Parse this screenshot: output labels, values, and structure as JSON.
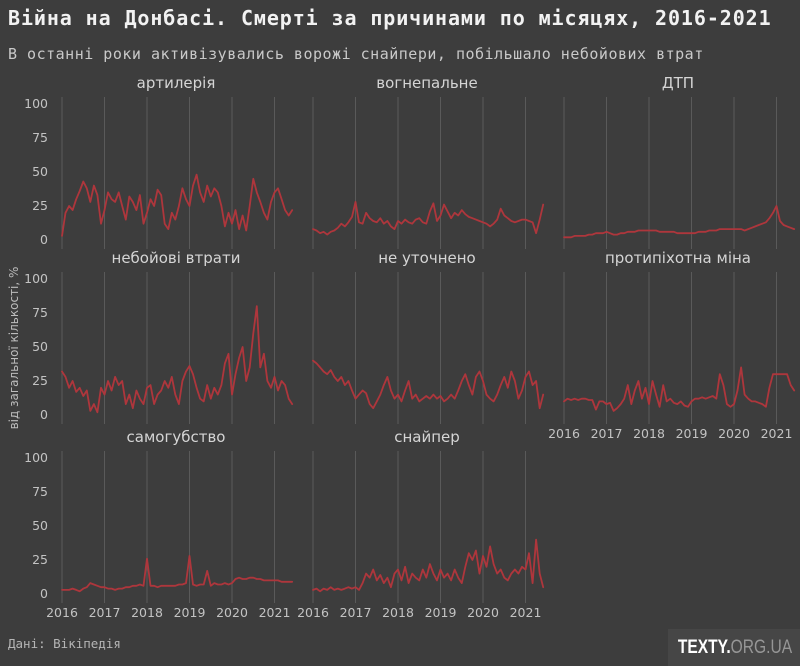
{
  "header": {
    "title": "Війна на Донбасі. Смерті за причинами по місяцях, 2016-2021",
    "subtitle": "В останні роки активізувались ворожі снайпери, побільшало небойових втрат"
  },
  "footer": {
    "source": "Дані: Вікіпедія",
    "logo_bold": "TEXTY.",
    "logo_light": "ORG.UA"
  },
  "chart_data": {
    "type": "line",
    "layout_hint": "small multiples: 8 panels in 3 columns, shared y axis 0-100%, vertical gridlines at each year, y tick labels only on left column, x tick labels under last panel of each column, no legend, dark background",
    "ylabel": "від загальної кількості, %",
    "ylim": [
      0,
      100
    ],
    "yticks": [
      100,
      75,
      50,
      25,
      0
    ],
    "xticks": [
      "2016",
      "2017",
      "2018",
      "2019",
      "2020",
      "2021"
    ],
    "x_start": "2016-01",
    "x_step_months": 1,
    "background_color": "#3d3d3d",
    "line_color": "#ae363c",
    "grid_color": "#5a5a5a",
    "panels": [
      {
        "title": "артилерія",
        "values": [
          3,
          20,
          25,
          22,
          30,
          36,
          43,
          38,
          28,
          40,
          33,
          12,
          22,
          35,
          30,
          28,
          35,
          25,
          15,
          32,
          28,
          22,
          33,
          12,
          20,
          30,
          25,
          37,
          33,
          12,
          8,
          20,
          15,
          25,
          38,
          30,
          25,
          40,
          48,
          35,
          28,
          40,
          32,
          38,
          35,
          25,
          10,
          20,
          12,
          22,
          8,
          18,
          7,
          25,
          45,
          35,
          28,
          20,
          15,
          28,
          35,
          38,
          30,
          22,
          18,
          22
        ]
      },
      {
        "title": "вогнепальне",
        "values": [
          8,
          7,
          5,
          6,
          4,
          6,
          7,
          9,
          12,
          10,
          13,
          17,
          28,
          13,
          12,
          20,
          16,
          14,
          13,
          16,
          12,
          14,
          10,
          8,
          14,
          12,
          15,
          13,
          12,
          15,
          16,
          13,
          12,
          21,
          27,
          14,
          18,
          26,
          21,
          16,
          20,
          18,
          22,
          19,
          17,
          16,
          15,
          14,
          13,
          12,
          10,
          12,
          15,
          23,
          18,
          16,
          14,
          13,
          14,
          15,
          15,
          14,
          13,
          5,
          15,
          26
        ]
      },
      {
        "title": "ДТП",
        "values": [
          2,
          2,
          2,
          3,
          3,
          3,
          3,
          4,
          4,
          5,
          5,
          5,
          6,
          5,
          4,
          4,
          5,
          5,
          6,
          6,
          6,
          7,
          7,
          7,
          7,
          7,
          7,
          6,
          6,
          6,
          6,
          6,
          5,
          5,
          5,
          5,
          5,
          5,
          6,
          6,
          6,
          7,
          7,
          7,
          8,
          8,
          8,
          8,
          8,
          8,
          8,
          7,
          8,
          9,
          10,
          11,
          12,
          13,
          16,
          20,
          25,
          14,
          11,
          10,
          9,
          8
        ]
      },
      {
        "title": "небойові втрати",
        "values": [
          32,
          28,
          20,
          25,
          17,
          20,
          14,
          18,
          3,
          8,
          2,
          20,
          15,
          25,
          18,
          28,
          22,
          25,
          8,
          15,
          5,
          18,
          12,
          8,
          20,
          22,
          8,
          15,
          18,
          25,
          20,
          28,
          15,
          8,
          25,
          32,
          36,
          30,
          20,
          12,
          10,
          22,
          12,
          20,
          15,
          22,
          38,
          45,
          15,
          30,
          42,
          50,
          25,
          35,
          60,
          80,
          35,
          45,
          25,
          20,
          28,
          18,
          25,
          22,
          12,
          8
        ]
      },
      {
        "title": "не уточнено",
        "values": [
          40,
          38,
          35,
          32,
          30,
          33,
          28,
          25,
          28,
          22,
          25,
          18,
          12,
          15,
          18,
          16,
          8,
          5,
          10,
          15,
          22,
          28,
          18,
          12,
          15,
          10,
          18,
          25,
          12,
          15,
          10,
          12,
          14,
          12,
          15,
          12,
          14,
          10,
          12,
          15,
          12,
          18,
          25,
          30,
          22,
          15,
          28,
          32,
          25,
          15,
          12,
          10,
          15,
          22,
          28,
          20,
          32,
          25,
          12,
          18,
          28,
          32,
          22,
          25,
          5,
          15
        ]
      },
      {
        "title": "протипіхотна міна",
        "values": [
          10,
          12,
          11,
          12,
          11,
          12,
          12,
          11,
          11,
          4,
          10,
          10,
          8,
          9,
          3,
          5,
          8,
          12,
          22,
          8,
          18,
          25,
          12,
          20,
          8,
          25,
          15,
          6,
          22,
          10,
          12,
          9,
          8,
          10,
          7,
          6,
          10,
          12,
          12,
          13,
          12,
          13,
          14,
          12,
          30,
          22,
          8,
          6,
          8,
          18,
          35,
          15,
          12,
          10,
          10,
          9,
          8,
          6,
          20,
          30,
          30,
          30,
          30,
          30,
          22,
          18
        ]
      },
      {
        "title": "самогубство",
        "values": [
          3,
          3,
          3,
          4,
          3,
          2,
          4,
          5,
          8,
          7,
          6,
          5,
          5,
          4,
          4,
          3,
          4,
          4,
          5,
          5,
          6,
          6,
          7,
          6,
          26,
          6,
          6,
          5,
          6,
          6,
          6,
          6,
          6,
          7,
          7,
          8,
          28,
          7,
          6,
          7,
          7,
          17,
          6,
          8,
          7,
          7,
          8,
          7,
          8,
          11,
          12,
          11,
          11,
          12,
          12,
          11,
          11,
          10,
          10,
          10,
          10,
          10,
          9,
          9,
          9,
          9
        ]
      },
      {
        "title": "снайпер",
        "values": [
          3,
          4,
          2,
          4,
          3,
          5,
          3,
          4,
          3,
          4,
          5,
          4,
          5,
          3,
          8,
          15,
          12,
          18,
          10,
          14,
          8,
          12,
          5,
          15,
          18,
          10,
          20,
          8,
          15,
          12,
          10,
          18,
          12,
          22,
          15,
          10,
          18,
          12,
          15,
          10,
          18,
          12,
          8,
          20,
          30,
          25,
          32,
          15,
          28,
          20,
          35,
          22,
          15,
          18,
          12,
          10,
          15,
          18,
          15,
          20,
          18,
          30,
          8,
          40,
          15,
          5
        ]
      }
    ]
  }
}
